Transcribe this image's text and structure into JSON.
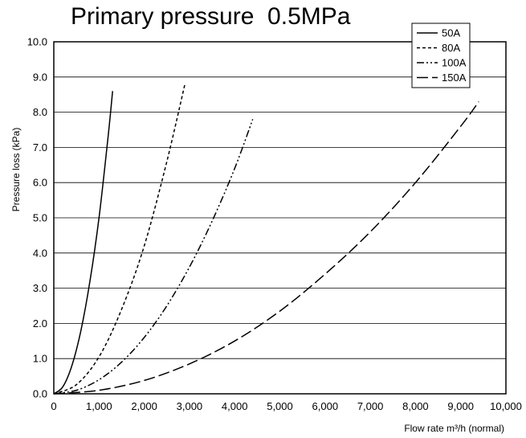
{
  "chart_data": {
    "type": "line",
    "title": "Primary pressure  0.5MPa",
    "xlabel": "Flow rate m³/h (normal)",
    "ylabel": "Pressure loss (kPa)",
    "xlim": [
      0,
      10000
    ],
    "ylim": [
      0,
      10
    ],
    "x_ticks": [
      "0",
      "1,000",
      "2,000",
      "3,000",
      "4,000",
      "5,000",
      "6,000",
      "7,000",
      "8,000",
      "9,000",
      "10,000"
    ],
    "y_ticks": [
      "0.0",
      "1.0",
      "2.0",
      "3.0",
      "4.0",
      "5.0",
      "6.0",
      "7.0",
      "8.0",
      "9.0",
      "10.0"
    ],
    "grid": "horizontal",
    "legend_position": "top-right",
    "series": [
      {
        "name": "50A",
        "dash": "solid",
        "x": [
          0,
          200,
          400,
          600,
          800,
          1000,
          1200,
          1300
        ],
        "y": [
          0,
          0.2,
          0.8,
          1.8,
          3.2,
          5.0,
          7.3,
          8.6
        ]
      },
      {
        "name": "80A",
        "dash": "dash",
        "x": [
          0,
          500,
          1000,
          1500,
          2000,
          2500,
          2900
        ],
        "y": [
          0,
          0.26,
          1.05,
          2.4,
          4.2,
          6.6,
          8.8
        ]
      },
      {
        "name": "100A",
        "dash": "dash-dot-dot",
        "x": [
          0,
          500,
          1000,
          1500,
          2000,
          2500,
          3000,
          3500,
          4000,
          4400
        ],
        "y": [
          0,
          0.1,
          0.4,
          0.9,
          1.6,
          2.5,
          3.6,
          4.9,
          6.4,
          7.8
        ]
      },
      {
        "name": "150A",
        "dash": "long-dash",
        "x": [
          0,
          1000,
          2000,
          3000,
          4000,
          5000,
          6000,
          7000,
          8000,
          9000,
          9400
        ],
        "y": [
          0,
          0.1,
          0.38,
          0.85,
          1.5,
          2.35,
          3.4,
          4.6,
          6.0,
          7.6,
          8.3
        ]
      }
    ]
  }
}
